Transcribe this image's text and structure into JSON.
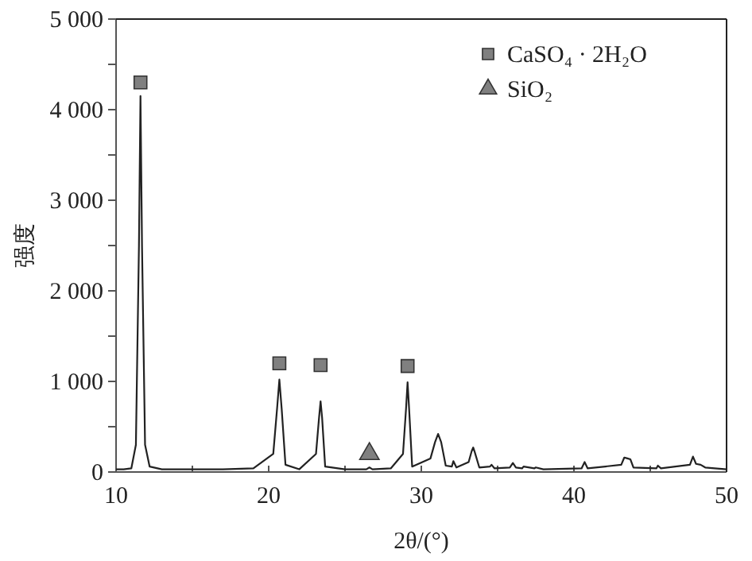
{
  "chart_data": {
    "type": "line",
    "xlabel": "2θ/(°)",
    "ylabel": "强度",
    "xlim": [
      10,
      50
    ],
    "ylim": [
      0,
      5000
    ],
    "xticks": [
      10,
      {
        "value": 15,
        "label": null
      },
      20,
      {
        "value": 25,
        "label": null
      },
      30,
      {
        "value": 35,
        "label": null
      },
      40,
      {
        "value": 45,
        "label": null
      },
      50
    ],
    "yticks": [
      {
        "value": 0,
        "label": "0"
      },
      {
        "value": 500,
        "label": null
      },
      {
        "value": 1000,
        "label": "1 000"
      },
      {
        "value": 1500,
        "label": null
      },
      {
        "value": 2000,
        "label": "2 000"
      },
      {
        "value": 2500,
        "label": null
      },
      {
        "value": 3000,
        "label": "3 000"
      },
      {
        "value": 3500,
        "label": null
      },
      {
        "value": 4000,
        "label": "4 000"
      },
      {
        "value": 4500,
        "label": null
      },
      {
        "value": 5000,
        "label": "5 000"
      }
    ],
    "legend": "top right",
    "grid": false,
    "series": [
      {
        "color": "#222222",
        "marker": "none",
        "x": [
          10,
          10.5,
          11,
          11.3,
          11.5,
          11.6,
          11.7,
          11.9,
          12.2,
          13,
          15,
          17,
          19,
          20.3,
          20.55,
          20.7,
          20.85,
          21.1,
          22,
          23.1,
          23.3,
          23.4,
          23.5,
          23.7,
          25,
          26.4,
          26.6,
          26.8,
          28,
          28.8,
          29.0,
          29.1,
          29.2,
          29.4,
          30.6,
          30.9,
          31.1,
          31.3,
          31.6,
          32.0,
          32.1,
          32.3,
          33.1,
          33.3,
          33.4,
          33.5,
          33.8,
          34.5,
          34.6,
          34.8,
          35.8,
          36.0,
          36.2,
          36.6,
          36.7,
          37.4,
          37.5,
          38,
          40.5,
          40.7,
          40.9,
          43.1,
          43.3,
          43.5,
          43.7,
          43.9,
          45.4,
          45.5,
          45.7,
          47.6,
          47.8,
          48.0,
          48.3,
          48.6,
          50
        ],
        "values": [
          30,
          30,
          40,
          300,
          2500,
          4150,
          2500,
          300,
          60,
          30,
          30,
          30,
          40,
          200,
          700,
          1020,
          700,
          80,
          30,
          200,
          600,
          780,
          600,
          60,
          30,
          30,
          50,
          30,
          40,
          200,
          700,
          990,
          700,
          60,
          150,
          330,
          420,
          330,
          70,
          60,
          120,
          50,
          110,
          230,
          270,
          220,
          50,
          60,
          80,
          40,
          50,
          100,
          50,
          40,
          60,
          40,
          50,
          30,
          40,
          110,
          40,
          80,
          160,
          150,
          140,
          50,
          40,
          70,
          40,
          80,
          170,
          90,
          80,
          50,
          30
        ]
      },
      {
        "type": "scatter",
        "name": "CaSO₄ · 2H₂O",
        "color": "#808080",
        "marker": "square",
        "x": [
          11.6,
          20.7,
          23.4,
          29.1
        ],
        "values": [
          4300,
          1200,
          1180,
          1170
        ]
      },
      {
        "type": "scatter",
        "name": "SiO₂",
        "color": "#808080",
        "marker": "triangle",
        "x": [
          26.6
        ],
        "values": [
          200
        ]
      }
    ]
  }
}
